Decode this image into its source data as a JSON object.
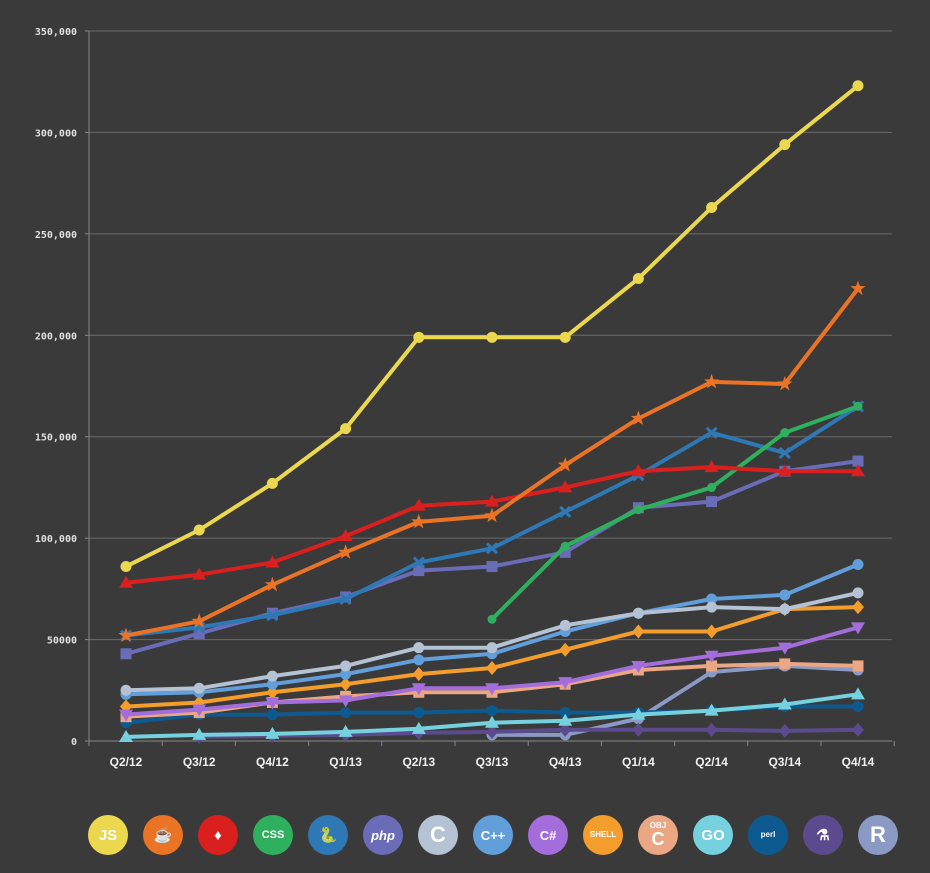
{
  "chart_data": {
    "type": "line",
    "title": "",
    "xlabel": "",
    "ylabel": "",
    "ylim": [
      0,
      350000
    ],
    "grid": true,
    "legend_position": "bottom",
    "categories": [
      "Q2/12",
      "Q3/12",
      "Q4/12",
      "Q1/13",
      "Q2/13",
      "Q3/13",
      "Q4/13",
      "Q1/14",
      "Q2/14",
      "Q3/14",
      "Q4/14"
    ],
    "yticks": [
      0,
      50000,
      100000,
      150000,
      200000,
      250000,
      300000,
      350000
    ],
    "ytick_labels": [
      "0",
      "50000",
      "100,000",
      "150,000",
      "200,000",
      "250,000",
      "300,000",
      "350,000"
    ],
    "series": [
      {
        "name": "JavaScript",
        "color": "#ecd84f",
        "marker": "circle",
        "values": [
          86000,
          104000,
          127000,
          154000,
          199000,
          199000,
          199000,
          228000,
          263000,
          294000,
          323000
        ]
      },
      {
        "name": "Java",
        "color": "#ea7325",
        "marker": "star",
        "values": [
          52000,
          59000,
          77000,
          93000,
          108000,
          111000,
          136000,
          159000,
          177000,
          176000,
          223000
        ]
      },
      {
        "name": "Ruby",
        "color": "#da1f1f",
        "marker": "triangle",
        "values": [
          78000,
          82000,
          88000,
          101000,
          116000,
          118000,
          125000,
          133000,
          135000,
          133000,
          133000
        ]
      },
      {
        "name": "CSS",
        "color": "#2fb05e",
        "marker": "circle-small",
        "values": [
          null,
          null,
          null,
          null,
          null,
          60000,
          96000,
          114000,
          125000,
          152000,
          165000
        ]
      },
      {
        "name": "Python",
        "color": "#2e78b6",
        "marker": "x",
        "values": [
          52000,
          56000,
          62000,
          70000,
          88000,
          95000,
          113000,
          131000,
          152000,
          142000,
          165000
        ]
      },
      {
        "name": "PHP",
        "color": "#6a6cb7",
        "marker": "square",
        "values": [
          43000,
          53000,
          63000,
          71000,
          84000,
          86000,
          93000,
          115000,
          118000,
          133000,
          138000
        ]
      },
      {
        "name": "C",
        "color": "#b5c2d4",
        "marker": "circle",
        "values": [
          25000,
          26000,
          32000,
          37000,
          46000,
          46000,
          57000,
          63000,
          66000,
          65000,
          73000
        ]
      },
      {
        "name": "C++",
        "color": "#629ed9",
        "marker": "circle",
        "values": [
          23000,
          24000,
          28000,
          33000,
          40000,
          43000,
          54000,
          63000,
          70000,
          72000,
          87000
        ]
      },
      {
        "name": "C#",
        "color": "#a36ddb",
        "marker": "triangle-down",
        "values": [
          13000,
          15500,
          19000,
          20000,
          26000,
          26000,
          29000,
          37000,
          42000,
          46000,
          56000
        ]
      },
      {
        "name": "Shell",
        "color": "#f39d2c",
        "marker": "diamond",
        "values": [
          17000,
          19000,
          24000,
          28000,
          33000,
          36000,
          45000,
          54000,
          54000,
          65000,
          66000
        ]
      },
      {
        "name": "Objective-C",
        "color": "#eba783",
        "marker": "square",
        "values": [
          12000,
          14000,
          19000,
          22000,
          24000,
          24000,
          28000,
          35000,
          37000,
          38000,
          37000
        ]
      },
      {
        "name": "Go",
        "color": "#76d1df",
        "marker": "triangle",
        "values": [
          2000,
          3000,
          3500,
          4500,
          6000,
          9000,
          10000,
          13000,
          15000,
          18000,
          23000
        ]
      },
      {
        "name": "Perl",
        "color": "#0d5a91",
        "marker": "circle",
        "values": [
          9000,
          13000,
          13000,
          14000,
          14000,
          15000,
          14000,
          14000,
          15000,
          17000,
          17000
        ]
      },
      {
        "name": "Scheme",
        "color": "#5c4a8e",
        "marker": "diamond",
        "values": [
          null,
          2000,
          2500,
          3000,
          4000,
          4500,
          5500,
          5500,
          5500,
          5000,
          5500
        ]
      },
      {
        "name": "R",
        "color": "#8b9ac4",
        "marker": "circle",
        "values": [
          null,
          null,
          null,
          null,
          null,
          3000,
          3000,
          11000,
          34000,
          37000,
          35000
        ]
      }
    ]
  },
  "legend": [
    {
      "name": "JavaScript",
      "label": "JS",
      "color": "#ecd84f",
      "icon": "js-icon"
    },
    {
      "name": "Java",
      "label": "☕",
      "color": "#ea7325",
      "icon": "java-icon"
    },
    {
      "name": "Ruby",
      "label": "♦",
      "color": "#da1f1f",
      "icon": "ruby-icon"
    },
    {
      "name": "CSS",
      "label": "CSS",
      "color": "#2fb05e",
      "icon": "css-icon"
    },
    {
      "name": "Python",
      "label": "🐍",
      "color": "#2e78b6",
      "icon": "python-icon"
    },
    {
      "name": "PHP",
      "label": "php",
      "color": "#6a6cb7",
      "icon": "php-icon"
    },
    {
      "name": "C",
      "label": "C",
      "color": "#b5c2d4",
      "icon": "c-icon"
    },
    {
      "name": "C++",
      "label": "C++",
      "color": "#629ed9",
      "icon": "cpp-icon"
    },
    {
      "name": "C#",
      "label": "C#",
      "color": "#a36ddb",
      "icon": "csharp-icon"
    },
    {
      "name": "Shell",
      "label": "SHELL",
      "color": "#f39d2c",
      "icon": "shell-icon"
    },
    {
      "name": "Objective-C",
      "label": "OBJ",
      "label2": "C",
      "color": "#eba783",
      "icon": "objc-icon"
    },
    {
      "name": "Go",
      "label": "GO",
      "color": "#76d1df",
      "icon": "go-icon"
    },
    {
      "name": "Perl",
      "label": "perl",
      "color": "#0d5a91",
      "icon": "perl-icon"
    },
    {
      "name": "Scheme",
      "label": "⚗",
      "color": "#5c4a8e",
      "icon": "flask-icon"
    },
    {
      "name": "R",
      "label": "R",
      "color": "#8b9ac4",
      "icon": "r-icon"
    }
  ]
}
